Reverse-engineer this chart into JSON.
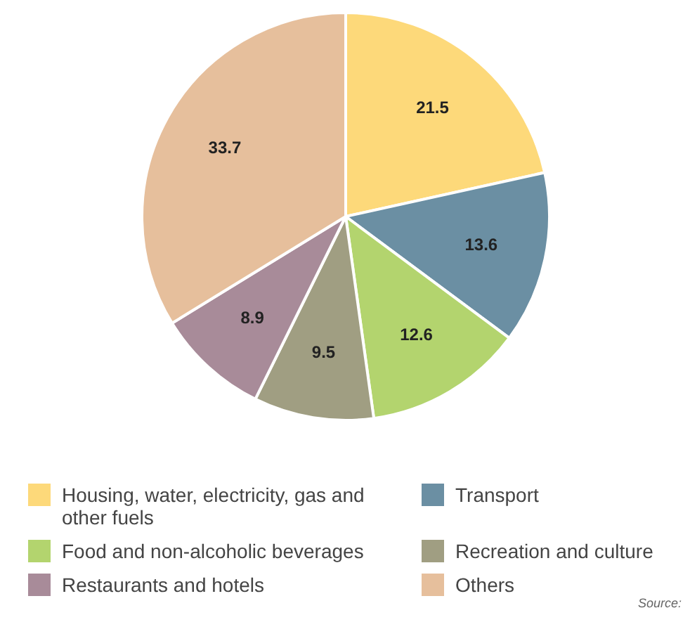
{
  "chart_data": {
    "type": "pie",
    "categories": [
      "Housing, water, electricity, gas and other fuels",
      "Transport",
      "Food and non-alcoholic beverages",
      "Recreation and culture",
      "Restaurants and hotels",
      "Others"
    ],
    "values": [
      21.5,
      13.6,
      12.6,
      9.5,
      8.9,
      33.7
    ],
    "colors": [
      "#fdd97a",
      "#6b8fa3",
      "#b3d46e",
      "#a09e82",
      "#a88b99",
      "#e6bf9c"
    ],
    "data_labels": true,
    "legend": "bottom",
    "annotations": [
      "Source:"
    ]
  }
}
